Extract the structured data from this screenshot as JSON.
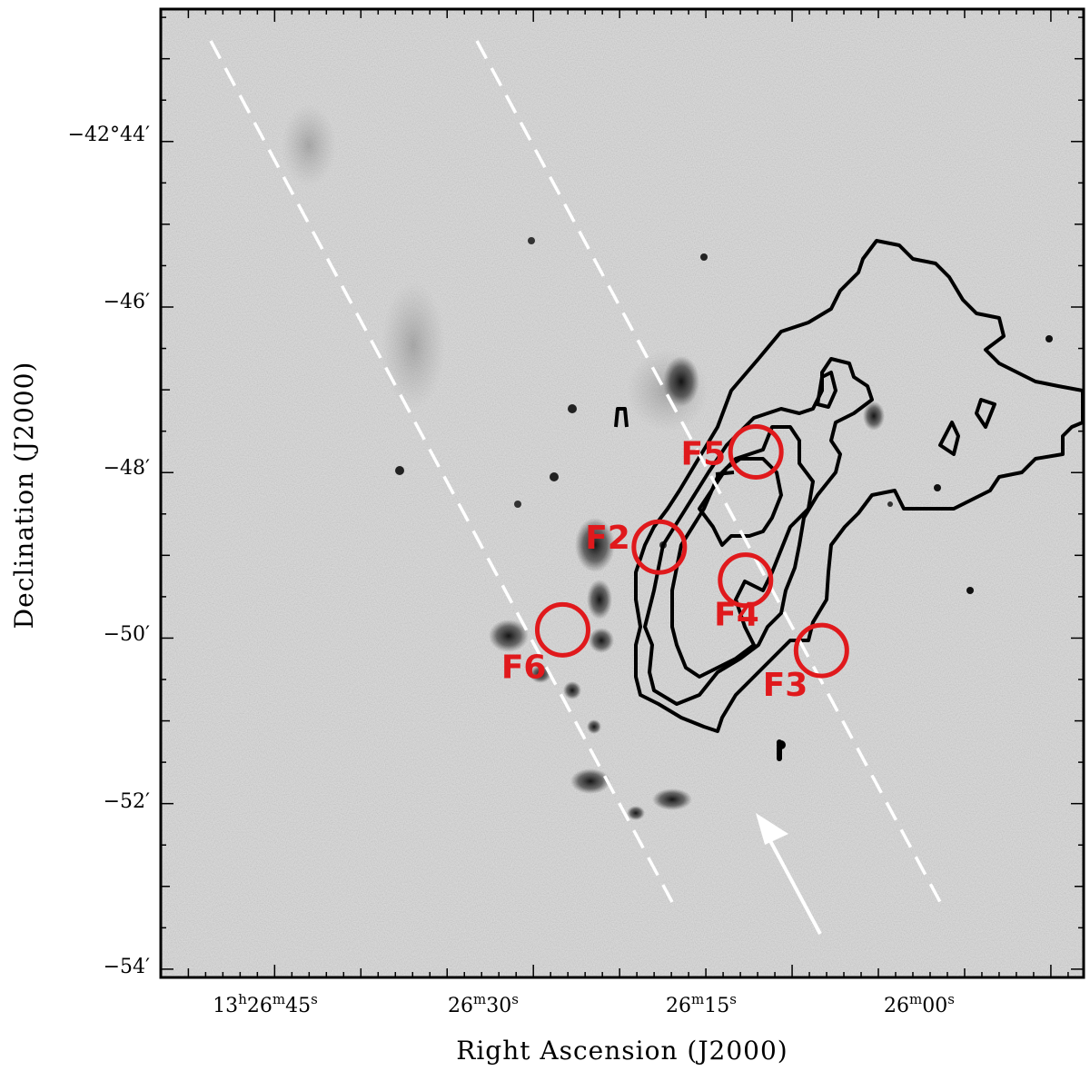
{
  "chart_data": {
    "type": "scatter",
    "title": "",
    "xlabel": "Right Ascension (J2000)",
    "ylabel": "Declination (J2000)",
    "x_ticks": [
      {
        "h": "13",
        "m": "26",
        "s": "45"
      },
      {
        "h": "",
        "m": "26",
        "s": "30"
      },
      {
        "h": "",
        "m": "26",
        "s": "15"
      },
      {
        "h": "",
        "m": "26",
        "s": "00"
      }
    ],
    "y_ticks": [
      "−42°44′",
      "−46′",
      "−48′",
      "−50′",
      "−52′",
      "−54′"
    ],
    "ylim_arcmin": [
      -54.1,
      -42.4
    ],
    "xlim_sec": [
      51.6,
      -1.9
    ],
    "fields": [
      {
        "name": "F2",
        "ra_s": 22.7,
        "dec_arcmin": -48.9
      },
      {
        "name": "F3",
        "ra_s": 13.3,
        "dec_arcmin": -50.15
      },
      {
        "name": "F4",
        "ra_s": 17.7,
        "dec_arcmin": -49.3
      },
      {
        "name": "F5",
        "ra_s": 17.1,
        "dec_arcmin": -47.75
      },
      {
        "name": "F6",
        "ra_s": 28.3,
        "dec_arcmin": -49.9
      }
    ],
    "grid": false,
    "colors": {
      "fields": "#e0191c",
      "contours": "#000000",
      "overlay": "#ffffff",
      "background": "#d9d9d9"
    }
  }
}
